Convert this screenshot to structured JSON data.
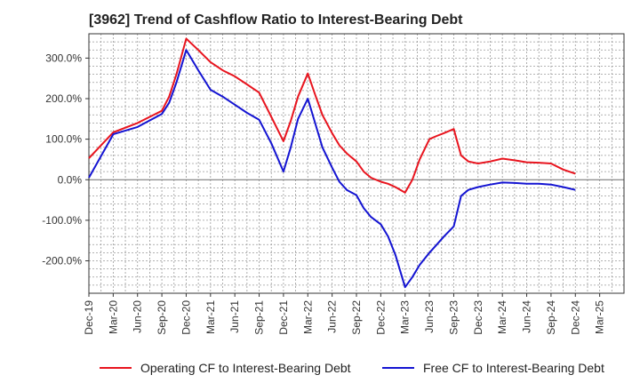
{
  "chart_data": {
    "type": "line",
    "title": "[3962]  Trend of Cashflow Ratio to Interest-Bearing Debt",
    "xlabel": "",
    "ylabel": "",
    "grid": true,
    "legend_position": "bottom",
    "x_ticks": [
      "Dec-19",
      "Mar-20",
      "Jun-20",
      "Sep-20",
      "Dec-20",
      "Mar-21",
      "Jun-21",
      "Sep-21",
      "Dec-21",
      "Mar-22",
      "Jun-22",
      "Sep-22",
      "Dec-22",
      "Mar-23",
      "Jun-23",
      "Sep-23",
      "Dec-23",
      "Mar-24",
      "Jun-24",
      "Sep-24",
      "Dec-24",
      "Mar-25"
    ],
    "y_ticks": [
      {
        "value": 300,
        "label": "300.0%"
      },
      {
        "value": 200,
        "label": "200.0%"
      },
      {
        "value": 100,
        "label": "100.0%"
      },
      {
        "value": 0,
        "label": "0.0%"
      },
      {
        "value": -100,
        "label": "-100.0%"
      },
      {
        "value": -200,
        "label": "-200.0%"
      }
    ],
    "ylim": [
      -280,
      360
    ],
    "series": [
      {
        "name": "Operating CF to Interest-Bearing Debt",
        "color": "#e8141e",
        "x": [
          0,
          1,
          2,
          3,
          3.3,
          3.6,
          4,
          4.5,
          5,
          5.5,
          6,
          6.5,
          7,
          7.5,
          8,
          8.3,
          8.6,
          9,
          9.3,
          9.6,
          10,
          10.3,
          10.6,
          11,
          11.3,
          11.6,
          12,
          12.3,
          12.6,
          13,
          13.3,
          13.6,
          14,
          14.3,
          14.6,
          15,
          15.3,
          15.6,
          16,
          16.5,
          17,
          17.5,
          18,
          18.5,
          19,
          19.5,
          20
        ],
        "values": [
          53,
          117,
          140,
          170,
          205,
          260,
          348,
          320,
          290,
          270,
          255,
          235,
          215,
          155,
          95,
          145,
          205,
          262,
          210,
          160,
          115,
          85,
          65,
          45,
          20,
          5,
          -5,
          -10,
          -18,
          -32,
          0,
          50,
          100,
          108,
          115,
          125,
          60,
          45,
          40,
          45,
          52,
          48,
          43,
          42,
          40,
          25,
          15
        ]
      },
      {
        "name": "Free CF to Interest-Bearing Debt",
        "color": "#1414d2",
        "x": [
          0,
          1,
          2,
          3,
          3.3,
          3.6,
          4,
          4.5,
          5,
          5.5,
          6,
          6.5,
          7,
          7.5,
          8,
          8.3,
          8.6,
          9,
          9.3,
          9.6,
          10,
          10.3,
          10.6,
          11,
          11.3,
          11.6,
          12,
          12.3,
          12.6,
          13,
          13.3,
          13.6,
          14,
          14.3,
          14.6,
          15,
          15.3,
          15.6,
          16,
          16.5,
          17,
          17.5,
          18,
          18.5,
          19,
          19.5,
          20
        ],
        "values": [
          5,
          112,
          130,
          162,
          190,
          240,
          320,
          270,
          222,
          205,
          185,
          165,
          148,
          90,
          20,
          80,
          150,
          200,
          140,
          80,
          30,
          -5,
          -25,
          -38,
          -70,
          -92,
          -110,
          -140,
          -185,
          -265,
          -240,
          -210,
          -180,
          -160,
          -140,
          -115,
          -40,
          -25,
          -18,
          -12,
          -7,
          -8,
          -10,
          -10,
          -12,
          -18,
          -25
        ]
      }
    ]
  }
}
